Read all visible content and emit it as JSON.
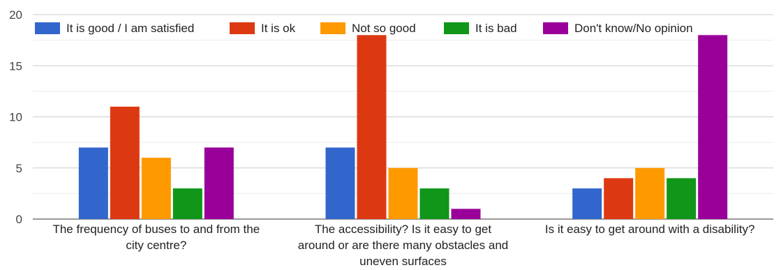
{
  "chart_data": {
    "type": "bar",
    "title": "",
    "xlabel": "",
    "ylabel": "",
    "ylim": [
      0,
      20
    ],
    "yticks": [
      0,
      5,
      10,
      15,
      20
    ],
    "grid": true,
    "legend_position": "top",
    "categories": [
      [
        "The frequency of buses to and from the",
        "city centre?"
      ],
      [
        "The accessibility? Is it easy to get",
        "around or are there many obstacles and",
        "uneven surfaces"
      ],
      [
        "Is it easy to get around with a disability?"
      ]
    ],
    "series": [
      {
        "name": "It is good / I am satisfied",
        "color": "#3366cc",
        "values": [
          7,
          7,
          3
        ]
      },
      {
        "name": "It is ok",
        "color": "#dc3912",
        "values": [
          11,
          18,
          4
        ]
      },
      {
        "name": "Not so good",
        "color": "#ff9900",
        "values": [
          6,
          5,
          5
        ]
      },
      {
        "name": "It is bad",
        "color": "#109618",
        "values": [
          3,
          3,
          4
        ]
      },
      {
        "name": "Don't know/No opinion",
        "color": "#990099",
        "values": [
          7,
          1,
          18
        ]
      }
    ]
  }
}
